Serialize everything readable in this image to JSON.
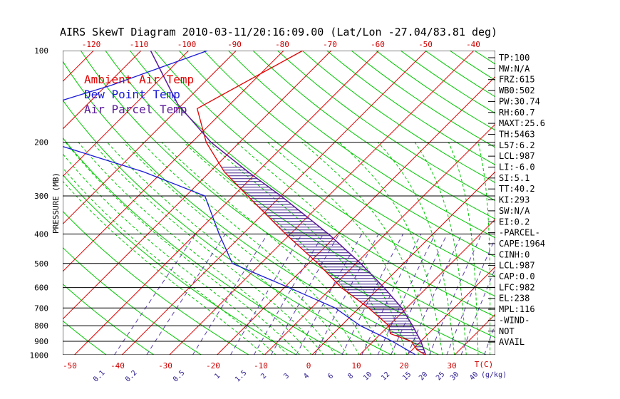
{
  "chart_data": {
    "type": "skewt",
    "title": "AIRS SkewT Diagram 2010-03-11/20:16:09.00 (Lat/Lon -27.04/83.81 deg)",
    "ylabel": "PRESSURE (MB)",
    "pressure_ticks": [
      100,
      200,
      300,
      400,
      500,
      600,
      700,
      800,
      900,
      1000
    ],
    "temp_ticks_top": [
      -120,
      -110,
      -100,
      -90,
      -80,
      -70,
      -60,
      -50,
      -40
    ],
    "temp_ticks_bottom": [
      -50,
      -40,
      -30,
      -20,
      -10,
      0,
      10,
      20,
      30
    ],
    "temp_axis_label": "T(C)",
    "mixing_ratio_ticks": [
      "0.1",
      "0.2",
      "0.5",
      "1",
      "1.5",
      "2",
      "3",
      "4",
      "6",
      "8",
      "10",
      "12",
      "15",
      "20",
      "25",
      "30",
      "40"
    ],
    "mixing_ratio_label": "(g/kg)",
    "legend": [
      {
        "label": "Ambient Air Temp",
        "color": "#e00000"
      },
      {
        "label": "Dew Point Temp",
        "color": "#1a1ad8"
      },
      {
        "label": "Air Parcel Temp",
        "color": "#5a1a9a"
      }
    ],
    "series": [
      {
        "name": "Ambient Air Temp",
        "points": [
          [
            100,
            -66
          ],
          [
            155,
            -76
          ],
          [
            200,
            -67
          ],
          [
            250,
            -57
          ],
          [
            300,
            -47
          ],
          [
            400,
            -31
          ],
          [
            500,
            -18
          ],
          [
            600,
            -8
          ],
          [
            700,
            2
          ],
          [
            800,
            10
          ],
          [
            850,
            12
          ],
          [
            900,
            18
          ],
          [
            960,
            21
          ],
          [
            1000,
            24
          ]
        ]
      },
      {
        "name": "Dew Point Temp",
        "points": [
          [
            100,
            -86
          ],
          [
            130,
            -99
          ],
          [
            155,
            -110
          ],
          [
            200,
            -100
          ],
          [
            250,
            -74
          ],
          [
            300,
            -56
          ],
          [
            400,
            -45
          ],
          [
            500,
            -36
          ],
          [
            600,
            -19
          ],
          [
            700,
            -5
          ],
          [
            800,
            4
          ],
          [
            900,
            14
          ],
          [
            1000,
            22
          ]
        ]
      },
      {
        "name": "Air Parcel Temp",
        "points": [
          [
            100,
            -98
          ],
          [
            150,
            -81
          ],
          [
            200,
            -66
          ],
          [
            250,
            -52
          ],
          [
            300,
            -40
          ],
          [
            400,
            -22
          ],
          [
            500,
            -9
          ],
          [
            600,
            1
          ],
          [
            700,
            9
          ],
          [
            800,
            15
          ],
          [
            900,
            20
          ],
          [
            1000,
            24
          ]
        ]
      }
    ],
    "indices": [
      "TP:100",
      "MW:N/A",
      "FRZ:615",
      "WB0:502",
      "PW:30.74",
      "RH:60.7",
      "MAXT:25.6",
      "TH:5463",
      "L57:6.2",
      "LCL:987",
      "LI:-6.0",
      "SI:5.1",
      "TT:40.2",
      "KI:293",
      "SW:N/A",
      "EI:0.2",
      "-PARCEL-",
      "CAPE:1964",
      "CINH:0",
      "LCL:987",
      "CAP:0.0",
      "LFC:982",
      "EL:238",
      "MPL:116",
      "-WIND-",
      "NOT",
      "AVAIL"
    ],
    "colors": {
      "isotherm": "#e00000",
      "dry_adiabat": "#00c800",
      "moist_adiabat": "#00c800",
      "mixing_ratio": "#5a3ab0",
      "isobar": "#000000",
      "cape_hatch": "#3a1a8a"
    }
  }
}
